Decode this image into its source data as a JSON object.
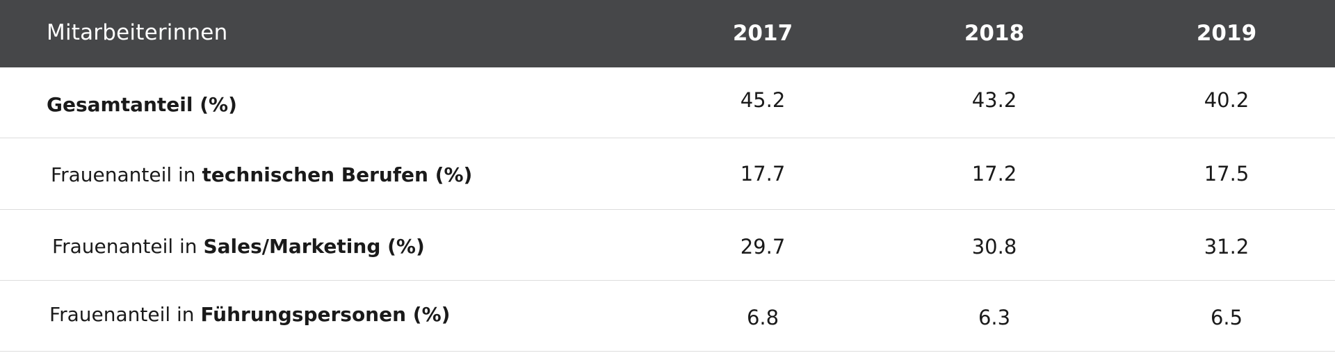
{
  "header": {
    "title": "Mitarbeiterinnen",
    "years": [
      "2017",
      "2018",
      "2019"
    ]
  },
  "rows": [
    {
      "label_plain": "",
      "label_bold": "Gesamtanteil (%)",
      "values": [
        "45.2",
        "43.2",
        "40.2"
      ]
    },
    {
      "label_plain": "Frauenanteil in ",
      "label_bold": "technischen Berufen (%)",
      "values": [
        "17.7",
        "17.2",
        "17.5"
      ]
    },
    {
      "label_plain": "Frauenanteil in ",
      "label_bold": "Sales/Marketing (%)",
      "values": [
        "29.7",
        "30.8",
        "31.2"
      ]
    },
    {
      "label_plain": "Frauenanteil in ",
      "label_bold": "Führungspersonen (%)",
      "values": [
        "6.8",
        "6.3",
        "6.5"
      ]
    }
  ],
  "colors": {
    "header_background": "#464749",
    "header_text": "#ffffff",
    "row_divider": "#dcdcdc"
  }
}
